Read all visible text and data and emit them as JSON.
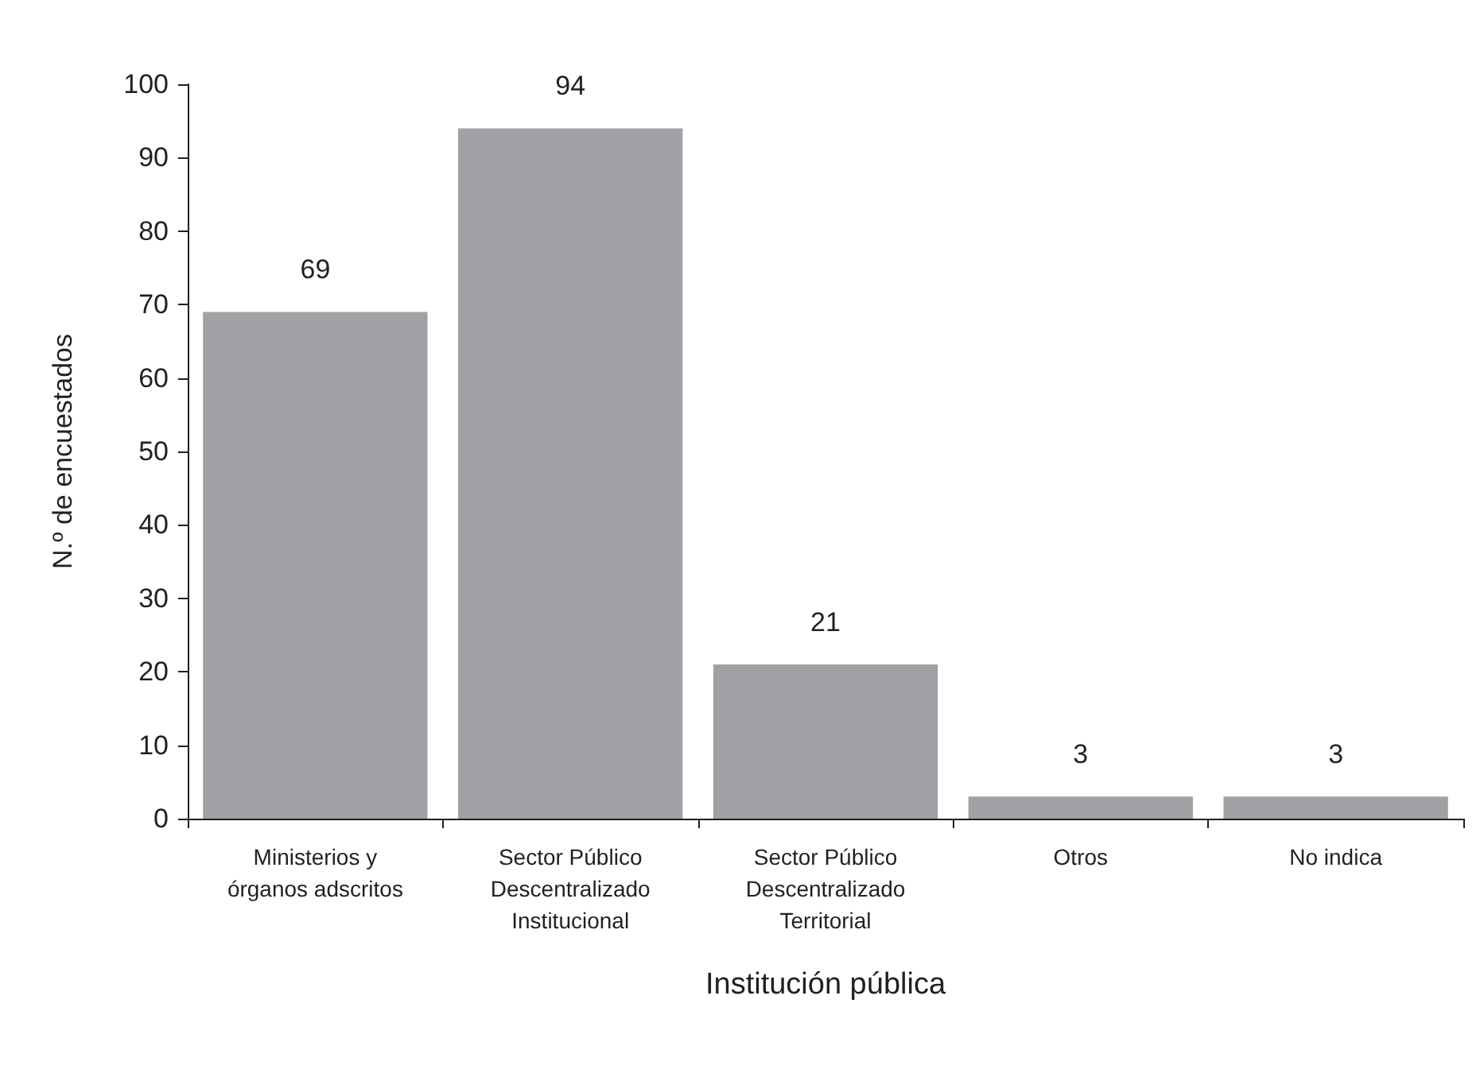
{
  "chart_data": {
    "type": "bar",
    "categories": [
      "Ministerios y\nórganos adscritos",
      "Sector Público\nDescentralizado\nInstitucional",
      "Sector Público\nDescentralizado\nTerritorial",
      "Otros",
      "No indica"
    ],
    "values": [
      69,
      94,
      21,
      3,
      3
    ],
    "color": "#a0a1a4",
    "xlabel": "Institución pública",
    "ylabel": "N.º de encuestados",
    "ylim": [
      0,
      100
    ],
    "yticks": [
      0,
      10,
      20,
      30,
      40,
      50,
      60,
      70,
      80,
      90,
      100
    ],
    "data_labels": true
  }
}
